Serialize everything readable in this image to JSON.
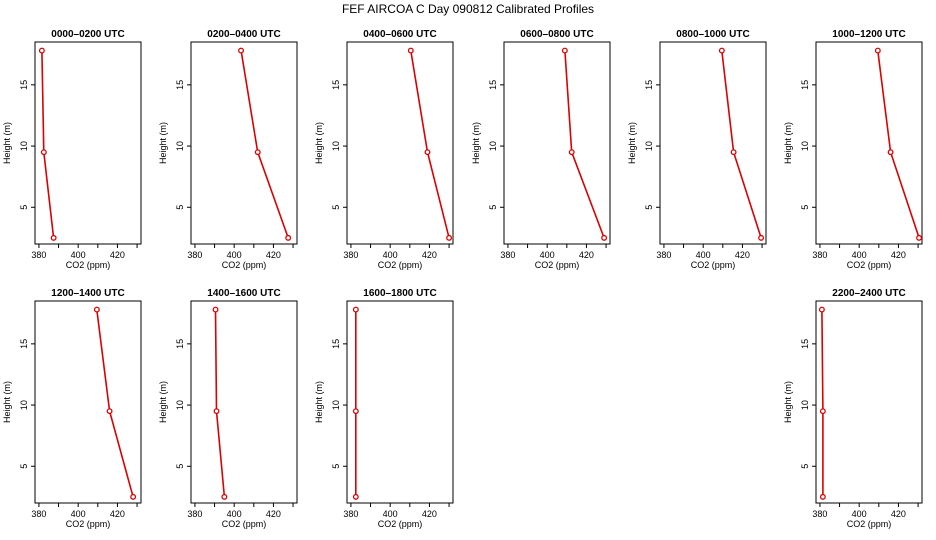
{
  "figure_title": "FEF AIRCOA C  Day 090812  Calibrated Profiles",
  "colors": {
    "line": "#dd0000",
    "axis": "#000000"
  },
  "chart_data": [
    {
      "type": "line",
      "title": "0000–0200 UTC",
      "xlabel": "CO2 (ppm)",
      "ylabel": "Height (m)",
      "xlim": [
        378,
        432
      ],
      "ylim": [
        2,
        18.5
      ],
      "xticks": [
        380,
        400,
        420
      ],
      "yticks": [
        5,
        10,
        15
      ],
      "x": [
        381.5,
        382.5,
        387.5
      ],
      "y": [
        17.8,
        9.5,
        2.5
      ]
    },
    {
      "type": "line",
      "title": "0200–0400 UTC",
      "xlabel": "CO2 (ppm)",
      "ylabel": "Height (m)",
      "xlim": [
        378,
        432
      ],
      "ylim": [
        2,
        18.5
      ],
      "xticks": [
        380,
        400,
        420
      ],
      "yticks": [
        5,
        10,
        15
      ],
      "x": [
        403.5,
        412,
        427.5
      ],
      "y": [
        17.8,
        9.5,
        2.5
      ]
    },
    {
      "type": "line",
      "title": "0400–0600 UTC",
      "xlabel": "CO2 (ppm)",
      "ylabel": "Height (m)",
      "xlim": [
        378,
        432
      ],
      "ylim": [
        2,
        18.5
      ],
      "xticks": [
        380,
        400,
        420
      ],
      "yticks": [
        5,
        10,
        15
      ],
      "x": [
        410.5,
        419,
        430
      ],
      "y": [
        17.8,
        9.5,
        2.5
      ]
    },
    {
      "type": "line",
      "title": "0600–0800 UTC",
      "xlabel": "CO2 (ppm)",
      "ylabel": "Height (m)",
      "xlim": [
        378,
        432
      ],
      "ylim": [
        2,
        18.5
      ],
      "xticks": [
        380,
        400,
        420
      ],
      "yticks": [
        5,
        10,
        15
      ],
      "x": [
        409,
        412.5,
        429
      ],
      "y": [
        17.8,
        9.5,
        2.5
      ]
    },
    {
      "type": "line",
      "title": "0800–1000 UTC",
      "xlabel": "CO2 (ppm)",
      "ylabel": "Height (m)",
      "xlim": [
        378,
        432
      ],
      "ylim": [
        2,
        18.5
      ],
      "xticks": [
        380,
        400,
        420
      ],
      "yticks": [
        5,
        10,
        15
      ],
      "x": [
        409.5,
        415.5,
        429.5
      ],
      "y": [
        17.8,
        9.5,
        2.5
      ]
    },
    {
      "type": "line",
      "title": "1000–1200 UTC",
      "xlabel": "CO2 (ppm)",
      "ylabel": "Height (m)",
      "xlim": [
        378,
        432
      ],
      "ylim": [
        2,
        18.5
      ],
      "xticks": [
        380,
        400,
        420
      ],
      "yticks": [
        5,
        10,
        15
      ],
      "x": [
        409.5,
        416,
        430.5
      ],
      "y": [
        17.8,
        9.5,
        2.5
      ]
    },
    {
      "type": "line",
      "title": "1200–1400 UTC",
      "xlabel": "CO2 (ppm)",
      "ylabel": "Height (m)",
      "xlim": [
        378,
        432
      ],
      "ylim": [
        2,
        18.5
      ],
      "xticks": [
        380,
        400,
        420
      ],
      "yticks": [
        5,
        10,
        15
      ],
      "x": [
        409.5,
        416,
        428
      ],
      "y": [
        17.8,
        9.5,
        2.5
      ]
    },
    {
      "type": "line",
      "title": "1400–1600 UTC",
      "xlabel": "CO2 (ppm)",
      "ylabel": "Height (m)",
      "xlim": [
        378,
        432
      ],
      "ylim": [
        2,
        18.5
      ],
      "xticks": [
        380,
        400,
        420
      ],
      "yticks": [
        5,
        10,
        15
      ],
      "x": [
        390.5,
        391,
        395
      ],
      "y": [
        17.8,
        9.5,
        2.5
      ]
    },
    {
      "type": "line",
      "title": "1600–1800 UTC",
      "xlabel": "CO2 (ppm)",
      "ylabel": "Height (m)",
      "xlim": [
        378,
        432
      ],
      "ylim": [
        2,
        18.5
      ],
      "xticks": [
        380,
        400,
        420
      ],
      "yticks": [
        5,
        10,
        15
      ],
      "x": [
        382.5,
        382.5,
        382.5
      ],
      "y": [
        17.8,
        9.5,
        2.5
      ]
    },
    null,
    null,
    {
      "type": "line",
      "title": "2200–2400 UTC",
      "xlabel": "CO2 (ppm)",
      "ylabel": "Height (m)",
      "xlim": [
        378,
        432
      ],
      "ylim": [
        2,
        18.5
      ],
      "xticks": [
        380,
        400,
        420
      ],
      "yticks": [
        5,
        10,
        15
      ],
      "x": [
        381,
        381.5,
        381.5
      ],
      "y": [
        17.8,
        9.5,
        2.5
      ]
    }
  ]
}
